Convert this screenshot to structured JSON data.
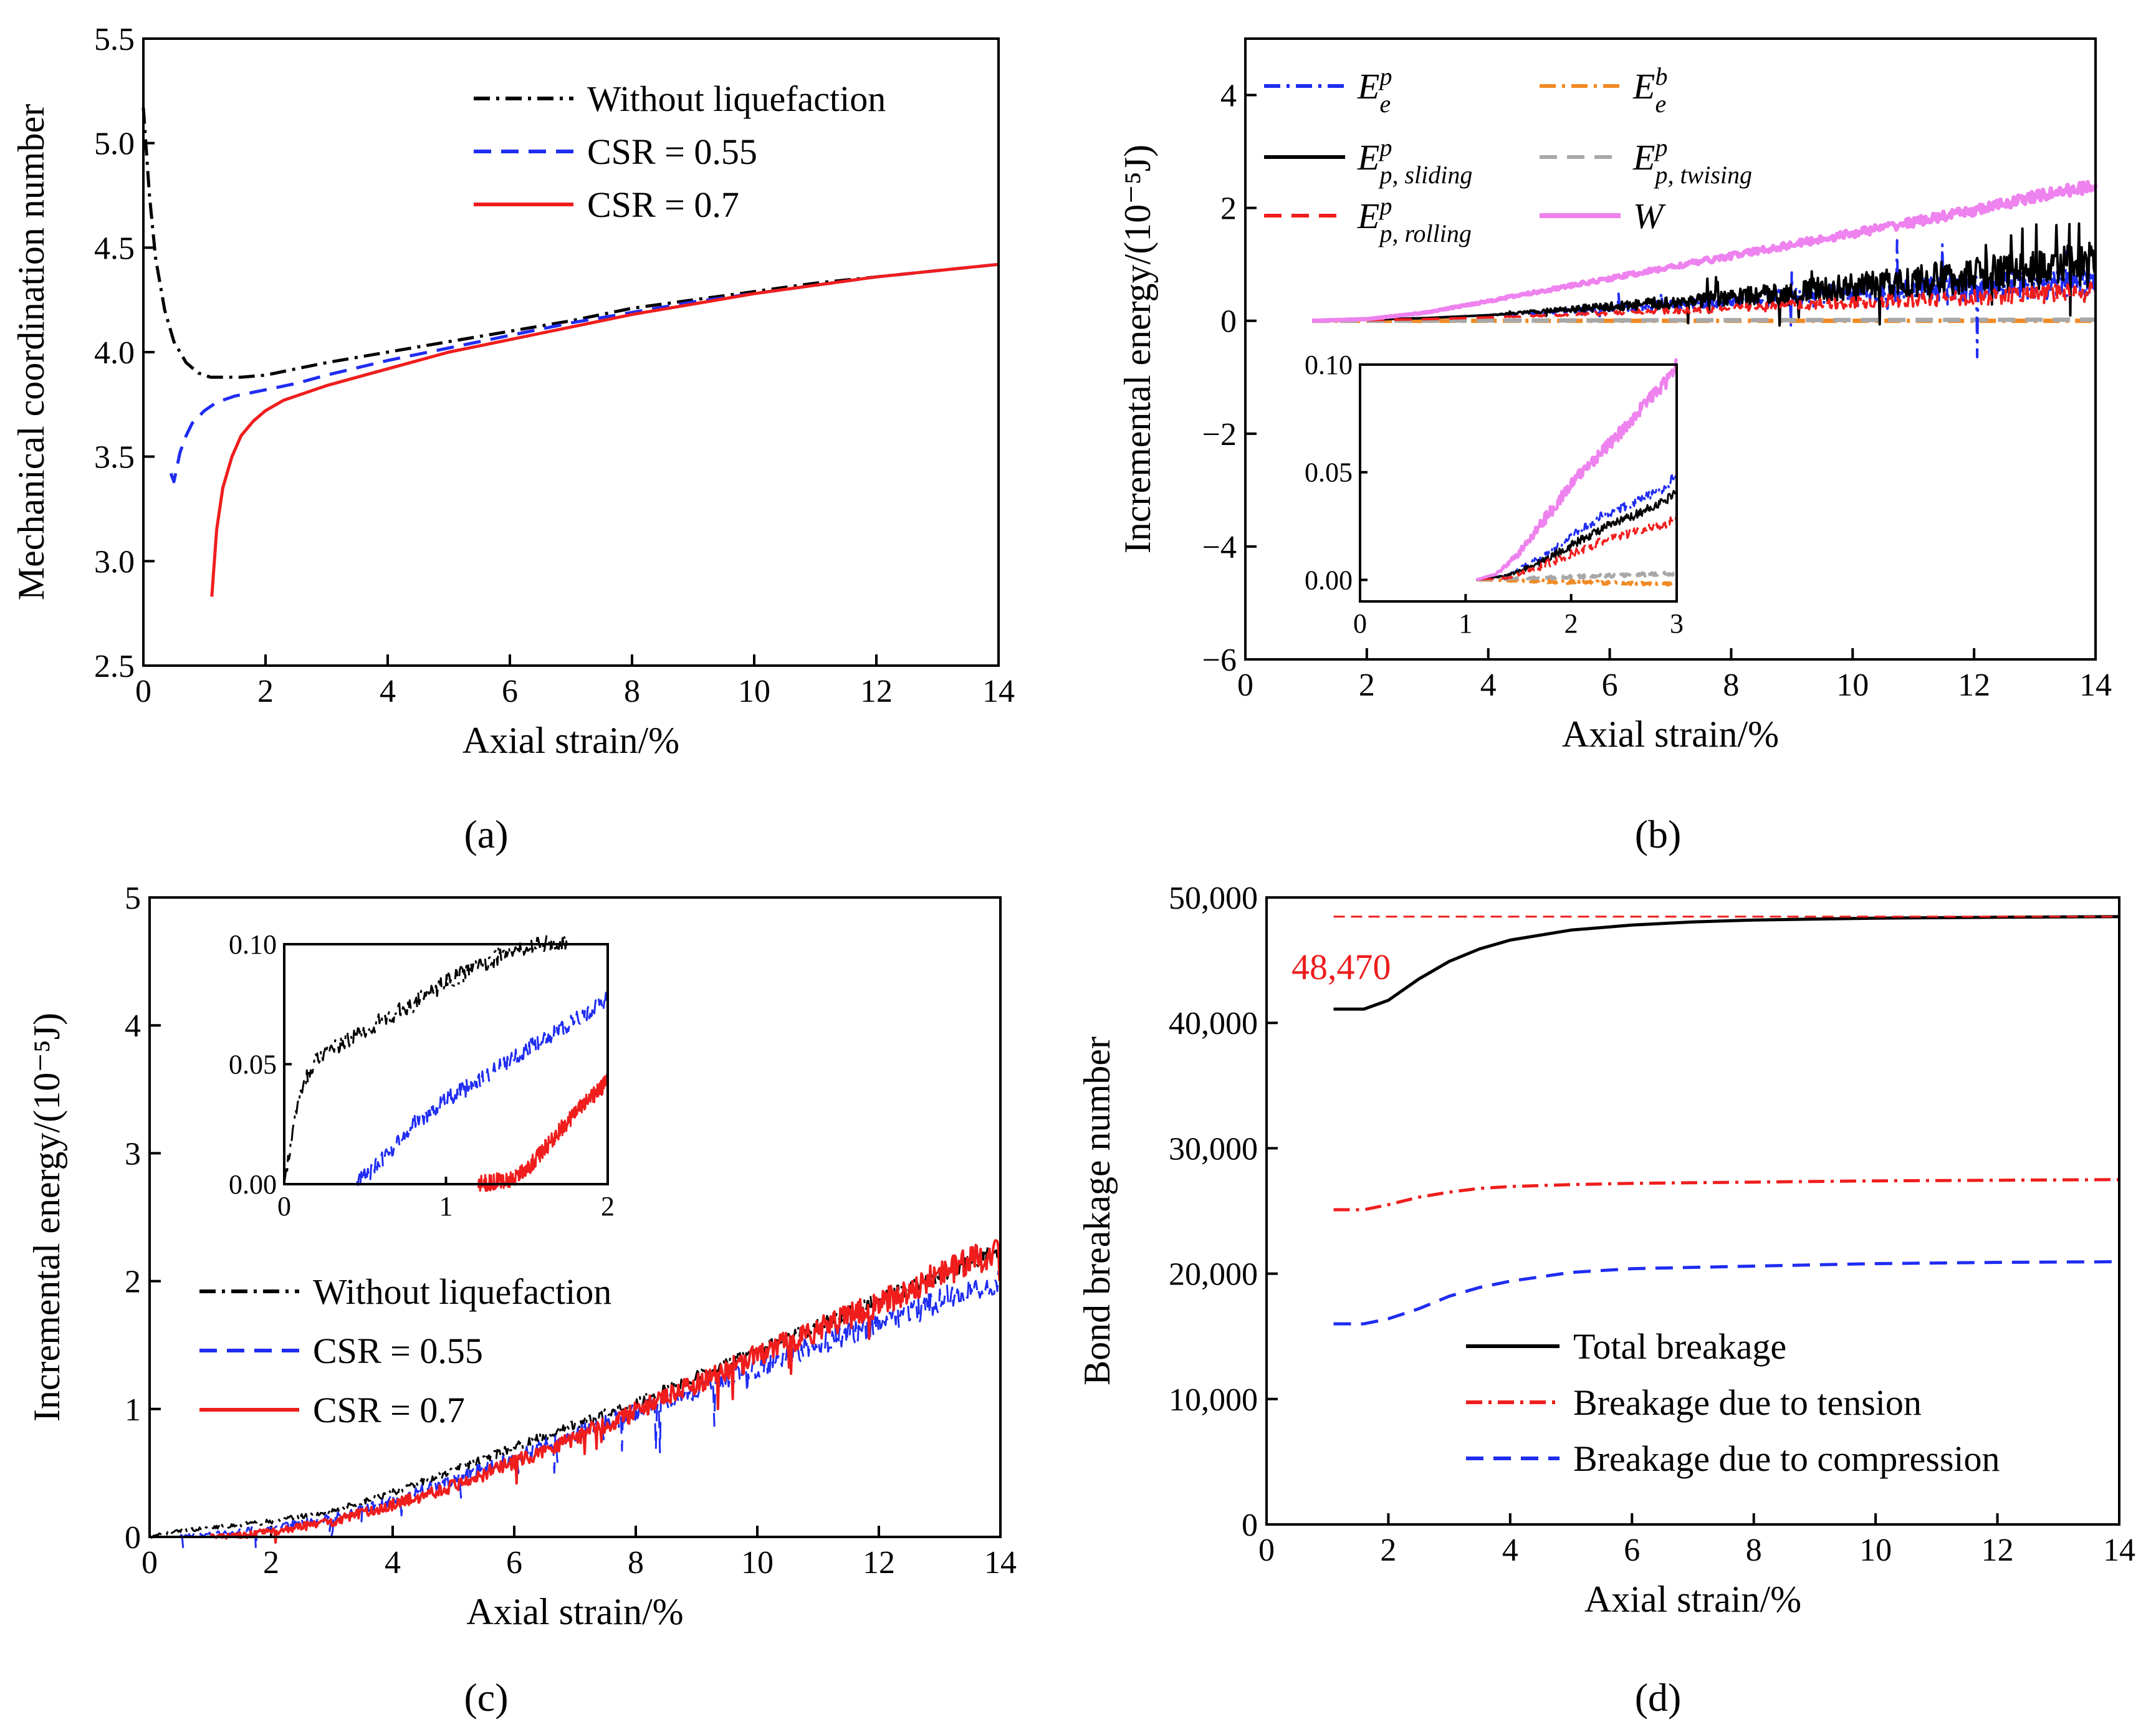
{
  "colors": {
    "black": "#000000",
    "blue": "#1f2cf2",
    "red": "#f01d1d",
    "orange": "#f08a24",
    "gray": "#a8a8a8",
    "violet": "#ee82ee",
    "annotation_red": "#ee1c1c"
  },
  "panel_labels": [
    "(a)",
    "(b)",
    "(c)",
    "(d)"
  ],
  "chart_data": [
    {
      "id": "a",
      "type": "line",
      "xlabel": "Axial strain/%",
      "ylabel": "Mechanical coordination number",
      "xlim": [
        0,
        14
      ],
      "ylim": [
        2.5,
        5.5
      ],
      "xticks": [
        "0",
        "2",
        "4",
        "6",
        "8",
        "10",
        "12",
        "14"
      ],
      "yticks": [
        "2.5",
        "3.0",
        "3.5",
        "4.0",
        "4.5",
        "5.0",
        "5.5"
      ],
      "legend_position": "top-right",
      "series": [
        {
          "name": "Without liquefaction",
          "style": "dashdot",
          "color": "#000000",
          "x": [
            0,
            0.1,
            0.2,
            0.35,
            0.5,
            0.7,
            0.9,
            1.1,
            1.3,
            1.6,
            2,
            2.5,
            3,
            4,
            5,
            6,
            7,
            8,
            9,
            10,
            11,
            12,
            13
          ],
          "y": [
            5.17,
            4.75,
            4.45,
            4.2,
            4.05,
            3.95,
            3.9,
            3.88,
            3.88,
            3.88,
            3.89,
            3.92,
            3.95,
            4.0,
            4.05,
            4.1,
            4.15,
            4.21,
            4.25,
            4.29,
            4.33,
            4.36,
            4.39
          ]
        },
        {
          "name": "CSR = 0.55",
          "style": "dashed",
          "color": "#1f2cf2",
          "x": [
            0.45,
            0.5,
            0.55,
            0.6,
            0.7,
            0.8,
            1,
            1.2,
            1.5,
            2,
            2.5,
            3,
            4,
            5,
            6,
            7,
            8,
            9,
            10,
            11,
            12,
            13,
            14
          ],
          "y": [
            3.42,
            3.38,
            3.45,
            3.52,
            3.6,
            3.66,
            3.72,
            3.76,
            3.79,
            3.82,
            3.85,
            3.89,
            3.96,
            4.02,
            4.08,
            4.14,
            4.19,
            4.24,
            4.28,
            4.32,
            4.36,
            4.39,
            4.42
          ]
        },
        {
          "name": "CSR = 0.7",
          "style": "solid",
          "color": "#f01d1d",
          "x": [
            1.12,
            1.15,
            1.2,
            1.3,
            1.45,
            1.6,
            1.8,
            2,
            2.3,
            2.6,
            3,
            3.5,
            4,
            5,
            6,
            7,
            8,
            9,
            10,
            11,
            12,
            13,
            14
          ],
          "y": [
            2.83,
            2.95,
            3.15,
            3.35,
            3.5,
            3.6,
            3.67,
            3.72,
            3.77,
            3.8,
            3.84,
            3.88,
            3.92,
            4.0,
            4.06,
            4.12,
            4.18,
            4.23,
            4.28,
            4.32,
            4.36,
            4.39,
            4.42
          ]
        }
      ]
    },
    {
      "id": "b",
      "type": "line",
      "xlabel": "Axial strain/%",
      "ylabel": "Incremental energy/(10⁻⁵J)",
      "xlim": [
        0,
        14
      ],
      "ylim": [
        -6,
        5
      ],
      "xticks": [
        "0",
        "2",
        "4",
        "6",
        "8",
        "10",
        "12",
        "14"
      ],
      "yticks": [
        "−6",
        "−4",
        "−2",
        "0",
        "2",
        "4"
      ],
      "legend_position": "top",
      "legend": [
        {
          "base": "E",
          "sup": "p",
          "sub": "e",
          "style": "dashdot",
          "color": "#1f2cf2"
        },
        {
          "base": "E",
          "sup": "b",
          "sub": "e",
          "style": "dashdot",
          "color": "#f08a24"
        },
        {
          "base": "E",
          "sup": "p",
          "sub": "p, sliding",
          "style": "solid",
          "color": "#000000"
        },
        {
          "base": "E",
          "sup": "p",
          "sub": "p, twising",
          "style": "dashed",
          "color": "#a8a8a8"
        },
        {
          "base": "E",
          "sup": "p",
          "sub": "p, rolling",
          "style": "dashed",
          "color": "#f01d1d"
        },
        {
          "base": "W",
          "sup": "",
          "sub": "",
          "style": "solid",
          "color": "#ee82ee"
        }
      ],
      "series": [
        {
          "key": "W",
          "x": [
            1.1,
            2,
            3,
            4,
            5,
            6,
            7,
            8,
            9,
            10,
            11,
            12,
            13,
            14
          ],
          "y": [
            0,
            0.03,
            0.15,
            0.35,
            0.55,
            0.75,
            0.95,
            1.15,
            1.35,
            1.55,
            1.75,
            1.95,
            2.2,
            2.4
          ]
        },
        {
          "key": "sliding",
          "x": [
            1.1,
            2,
            3,
            4,
            5,
            6,
            7,
            8,
            9,
            10,
            11,
            12,
            13,
            14
          ],
          "y": [
            0,
            0.02,
            0.05,
            0.1,
            0.18,
            0.25,
            0.32,
            0.4,
            0.5,
            0.6,
            0.7,
            0.8,
            0.9,
            1.0
          ]
        },
        {
          "key": "elastic",
          "x": [
            1.1,
            2,
            3,
            4,
            5,
            6,
            7,
            8,
            9,
            10,
            11,
            12,
            13,
            14
          ],
          "y": [
            0,
            0.02,
            0.05,
            0.1,
            0.15,
            0.22,
            0.28,
            0.35,
            0.42,
            0.5,
            0.55,
            0.6,
            0.65,
            0.7
          ]
        },
        {
          "key": "rolling",
          "x": [
            1.1,
            2,
            3,
            4,
            5,
            6,
            7,
            8,
            9,
            10,
            11,
            12,
            13,
            14
          ],
          "y": [
            0,
            0.01,
            0.03,
            0.06,
            0.1,
            0.14,
            0.18,
            0.22,
            0.27,
            0.32,
            0.37,
            0.42,
            0.47,
            0.52
          ]
        },
        {
          "key": "twisting",
          "x": [
            1.1,
            14
          ],
          "y": [
            0,
            0.02
          ]
        },
        {
          "key": "bond",
          "x": [
            1.1,
            14
          ],
          "y": [
            0,
            0
          ]
        }
      ],
      "inset": {
        "xlim": [
          0,
          3
        ],
        "ylim": [
          -0.01,
          0.1
        ],
        "xticks": [
          "0",
          "1",
          "2",
          "3"
        ],
        "yticks": [
          "0.00",
          "0.05",
          "0.10"
        ],
        "series": [
          {
            "key": "W",
            "x": [
              1.1,
              1.3,
              1.5,
              1.7,
              1.9,
              2.1,
              2.3,
              2.5,
              2.7,
              2.9,
              3
            ],
            "y": [
              0,
              0.003,
              0.012,
              0.025,
              0.038,
              0.05,
              0.06,
              0.07,
              0.082,
              0.092,
              0.1
            ]
          },
          {
            "key": "elastic",
            "x": [
              1.1,
              1.4,
              1.7,
              2,
              2.3,
              2.6,
              2.9,
              3
            ],
            "y": [
              0,
              0.002,
              0.01,
              0.02,
              0.03,
              0.036,
              0.043,
              0.05
            ]
          },
          {
            "key": "sliding",
            "x": [
              1.1,
              1.4,
              1.7,
              2,
              2.3,
              2.6,
              2.9,
              3
            ],
            "y": [
              0,
              0.002,
              0.008,
              0.016,
              0.024,
              0.03,
              0.037,
              0.042
            ]
          },
          {
            "key": "rolling",
            "x": [
              1.1,
              1.4,
              1.7,
              2,
              2.3,
              2.6,
              2.9,
              3
            ],
            "y": [
              0,
              0.001,
              0.006,
              0.012,
              0.018,
              0.022,
              0.026,
              0.03
            ]
          },
          {
            "key": "twisting",
            "x": [
              1.1,
              3
            ],
            "y": [
              0,
              0.003
            ]
          },
          {
            "key": "bond",
            "x": [
              1.1,
              3
            ],
            "y": [
              0,
              -0.002
            ]
          }
        ]
      }
    },
    {
      "id": "c",
      "type": "line",
      "xlabel": "Axial strain/%",
      "ylabel": "Incremental energy/(10⁻⁵J)",
      "xlim": [
        0,
        14
      ],
      "ylim": [
        0,
        5
      ],
      "xticks": [
        "0",
        "2",
        "4",
        "6",
        "8",
        "10",
        "12",
        "14"
      ],
      "yticks": [
        "0",
        "1",
        "2",
        "3",
        "4",
        "5"
      ],
      "legend_position": "lower-left",
      "series": [
        {
          "name": "Without liquefaction",
          "style": "dashdot",
          "color": "#000000",
          "x": [
            0,
            0.5,
            1,
            2,
            3,
            4,
            5,
            6,
            7,
            8,
            9,
            10,
            11,
            12,
            13,
            14
          ],
          "y": [
            0,
            0.05,
            0.07,
            0.12,
            0.2,
            0.35,
            0.52,
            0.7,
            0.88,
            1.05,
            1.25,
            1.45,
            1.65,
            1.85,
            2.05,
            2.25
          ]
        },
        {
          "name": "CSR = 0.55",
          "style": "dashed",
          "color": "#1f2cf2",
          "x": [
            0.5,
            1,
            2,
            3,
            4,
            5,
            6,
            7,
            8,
            9,
            10,
            11,
            12,
            13,
            14
          ],
          "y": [
            0,
            0.02,
            0.07,
            0.15,
            0.28,
            0.45,
            0.62,
            0.8,
            0.98,
            1.15,
            1.32,
            1.5,
            1.68,
            1.85,
            2.0
          ]
        },
        {
          "name": "CSR = 0.7",
          "style": "solid",
          "color": "#f01d1d",
          "x": [
            1,
            1.5,
            2,
            3,
            4,
            5,
            6,
            7,
            8,
            9,
            10,
            11,
            12,
            13,
            14
          ],
          "y": [
            0,
            0.01,
            0.04,
            0.12,
            0.25,
            0.4,
            0.58,
            0.78,
            0.98,
            1.2,
            1.42,
            1.62,
            1.82,
            2.05,
            2.25
          ]
        }
      ],
      "inset": {
        "xlim": [
          0,
          2
        ],
        "ylim": [
          0,
          0.1
        ],
        "xticks": [
          "0",
          "1",
          "2"
        ],
        "yticks": [
          "0.00",
          "0.05",
          "0.10"
        ],
        "series": [
          {
            "key": "without",
            "x": [
              0,
              0.03,
              0.06,
              0.1,
              0.2,
              0.4,
              0.6,
              0.8,
              1,
              1.2,
              1.4,
              1.6,
              1.75
            ],
            "y": [
              0,
              0.012,
              0.028,
              0.04,
              0.053,
              0.06,
              0.068,
              0.075,
              0.084,
              0.091,
              0.097,
              0.1,
              0.1
            ]
          },
          {
            "key": "csr055",
            "x": [
              0.45,
              0.6,
              0.8,
              1,
              1.2,
              1.4,
              1.6,
              1.8,
              2
            ],
            "y": [
              0,
              0.01,
              0.025,
              0.035,
              0.043,
              0.052,
              0.06,
              0.068,
              0.078
            ]
          },
          {
            "key": "csr07",
            "x": [
              1.2,
              1.4,
              1.5,
              1.6,
              1.7,
              1.8,
              1.9,
              2
            ],
            "y": [
              0,
              0.002,
              0.006,
              0.014,
              0.022,
              0.03,
              0.036,
              0.043
            ]
          }
        ]
      }
    },
    {
      "id": "d",
      "type": "line",
      "xlabel": "Axial strain/%",
      "ylabel": "Bond breakage number",
      "xlim": [
        0,
        14
      ],
      "ylim": [
        0,
        50000
      ],
      "xticks": [
        "0",
        "2",
        "4",
        "6",
        "8",
        "10",
        "12",
        "14"
      ],
      "yticks": [
        "0",
        "10,000",
        "20,000",
        "30,000",
        "40,000",
        "50,000"
      ],
      "legend_position": "lower-right",
      "annotation": {
        "text": "48,470",
        "value": 48470
      },
      "series": [
        {
          "name": "Total breakage",
          "style": "solid",
          "color": "#000000",
          "x": [
            1.1,
            1.6,
            2,
            2.5,
            3,
            3.5,
            4,
            5,
            6,
            7,
            8,
            10,
            12,
            14
          ],
          "y": [
            41100,
            41100,
            41800,
            43500,
            44900,
            45900,
            46600,
            47400,
            47800,
            48050,
            48200,
            48350,
            48420,
            48470
          ]
        },
        {
          "name": "Breakage due to tension",
          "style": "dashdot",
          "color": "#f01d1d",
          "x": [
            1.1,
            1.6,
            2,
            2.5,
            3,
            3.5,
            4,
            5,
            6,
            8,
            10,
            12,
            14
          ],
          "y": [
            25100,
            25100,
            25500,
            26100,
            26500,
            26800,
            26950,
            27100,
            27200,
            27300,
            27400,
            27450,
            27500
          ]
        },
        {
          "name": "Breakage due to compression",
          "style": "dashed",
          "color": "#1f2cf2",
          "x": [
            1.1,
            1.6,
            2,
            2.5,
            3,
            3.5,
            4,
            5,
            6,
            8,
            10,
            12,
            14
          ],
          "y": [
            16000,
            16000,
            16400,
            17200,
            18200,
            18900,
            19400,
            20100,
            20400,
            20600,
            20800,
            20900,
            20950
          ]
        },
        {
          "name": "",
          "style": "dashed-thin",
          "color": "#f01d1d",
          "x": [
            1.1,
            14
          ],
          "y": [
            48470,
            48470
          ]
        }
      ]
    }
  ]
}
